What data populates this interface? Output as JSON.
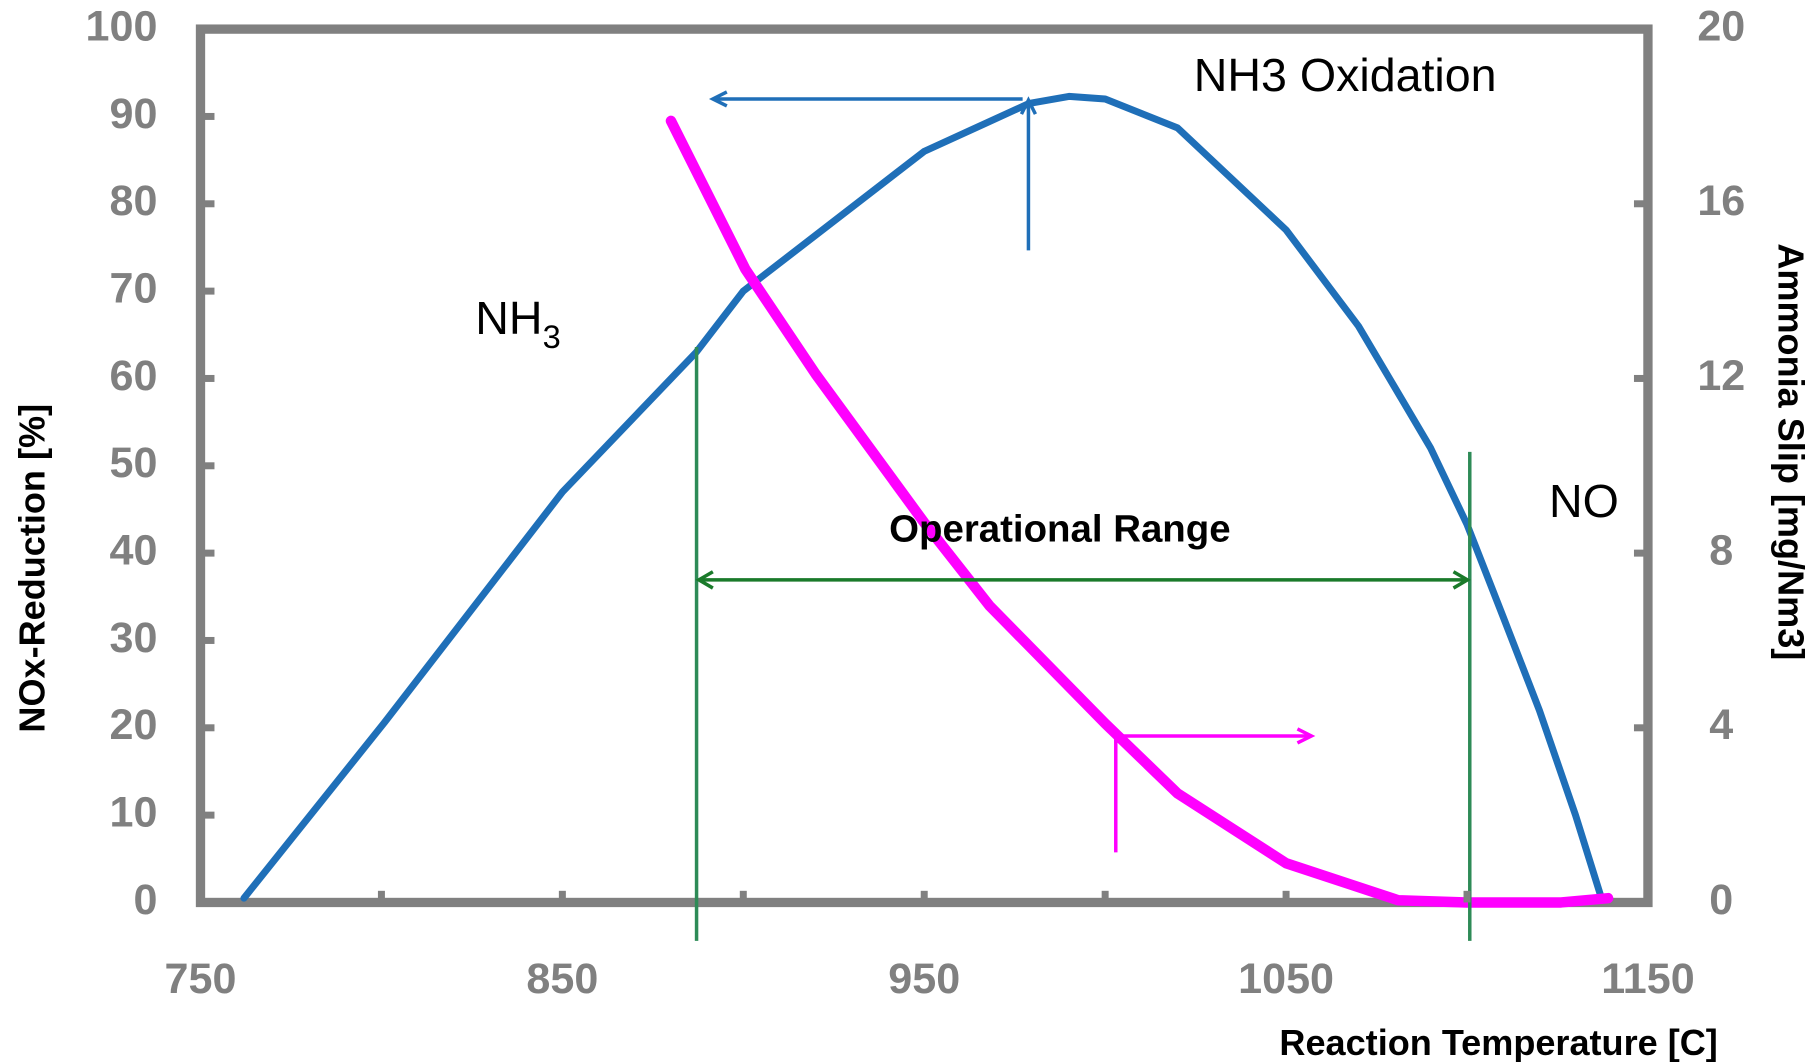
{
  "chart_data": {
    "type": "line",
    "x_label": "Reaction Temperature [C]",
    "y_label": "NOx-Reduction [%]",
    "y2_label": "Ammonia Slip [mg/Nm3]",
    "xlim": [
      750,
      1150
    ],
    "xticks": [
      750,
      850,
      950,
      1050,
      1150
    ],
    "xminorticks": [
      800,
      900,
      1000,
      1100
    ],
    "ylim": [
      0,
      100
    ],
    "yticks": [
      0,
      10,
      20,
      30,
      40,
      50,
      60,
      70,
      80,
      90,
      100
    ],
    "y2lim": [
      0,
      20
    ],
    "y2ticks": [
      0,
      4,
      8,
      12,
      16,
      20
    ],
    "series": [
      {
        "color": "#1f6fb8",
        "x": [
          762,
          801,
          850,
          887,
          900,
          950,
          979,
          990,
          1000,
          1020,
          1050,
          1070,
          1080,
          1090,
          1100,
          1110,
          1120,
          1130,
          1137
        ],
        "values": [
          0.5,
          20.7,
          47,
          63,
          70,
          86,
          91.5,
          92.3,
          92,
          88.7,
          77,
          66,
          59,
          52,
          43.3,
          32.7,
          22,
          10,
          0.7
        ]
      },
      {
        "color": "#ff00ff",
        "axis": "y2",
        "x": [
          880,
          900.6,
          920,
          950,
          968,
          1000,
          1020,
          1050,
          1081,
          1100,
          1126,
          1139
        ],
        "values": [
          17.9,
          14.5,
          12.1,
          8.7,
          6.8,
          4.1,
          2.5,
          0.9,
          0.05,
          0,
          0,
          0.1
        ]
      }
    ],
    "annotations": {
      "oxidation": "NH3 Oxidation",
      "nh": "NH",
      "nh_sub": "3",
      "no": "NO",
      "range": "Operational Range"
    }
  }
}
